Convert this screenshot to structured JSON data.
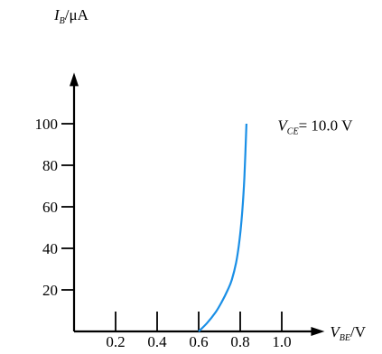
{
  "chart_data": {
    "type": "line",
    "xlabel_main": "V",
    "xlabel_sub": "BE",
    "xlabel_unit": "/V",
    "ylabel_main": "I",
    "ylabel_sub": "B",
    "ylabel_unit": "/μA",
    "x_ticks": [
      0.2,
      0.4,
      0.6,
      0.8,
      1.0
    ],
    "x_tick_labels": [
      "0.2",
      "0.4",
      "0.6",
      "0.8",
      "1.0"
    ],
    "y_ticks": [
      20,
      40,
      60,
      80,
      100
    ],
    "y_tick_labels": [
      "20",
      "40",
      "60",
      "80",
      "100"
    ],
    "xlim": [
      0,
      1.18
    ],
    "ylim": [
      0,
      122
    ],
    "grid": false,
    "series": [
      {
        "color": "#1a8fe6",
        "x": [
          0.6,
          0.64,
          0.68,
          0.71,
          0.74,
          0.76,
          0.78,
          0.79,
          0.8,
          0.81,
          0.82,
          0.83
        ],
        "y": [
          0,
          4,
          9,
          14,
          20,
          25,
          33,
          39,
          47,
          58,
          74,
          100
        ]
      }
    ],
    "annotation": {
      "main": "V",
      "sub": "CE",
      "rest": "= 10.0 V"
    }
  }
}
